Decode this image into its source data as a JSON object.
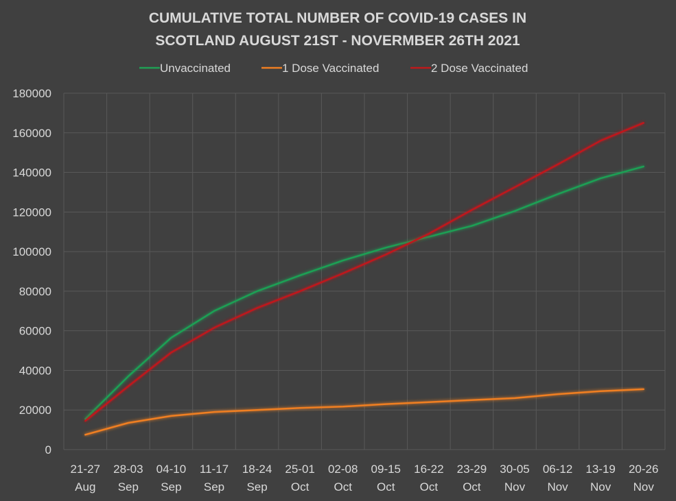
{
  "chart_data": {
    "type": "line",
    "title_lines": [
      "CUMULATIVE TOTAL NUMBER OF COVID-19 CASES IN",
      "SCOTLAND AUGUST 21ST - NOVERMBER 26TH 2021"
    ],
    "categories": [
      [
        "21-27",
        "Aug"
      ],
      [
        "28-03",
        "Sep"
      ],
      [
        "04-10",
        "Sep"
      ],
      [
        "11-17",
        "Sep"
      ],
      [
        "18-24",
        "Sep"
      ],
      [
        "25-01",
        "Oct"
      ],
      [
        "02-08",
        "Oct"
      ],
      [
        "09-15",
        "Oct"
      ],
      [
        "16-22",
        "Oct"
      ],
      [
        "23-29",
        "Oct"
      ],
      [
        "30-05",
        "Nov"
      ],
      [
        "06-12",
        "Nov"
      ],
      [
        "13-19",
        "Nov"
      ],
      [
        "20-26",
        "Nov"
      ]
    ],
    "ylim": [
      0,
      180000
    ],
    "yticks": [
      0,
      20000,
      40000,
      60000,
      80000,
      100000,
      120000,
      140000,
      160000,
      180000
    ],
    "grid": true,
    "legend_position": "top",
    "series": [
      {
        "name": "Unvaccinated",
        "color": "#1fa055",
        "values": [
          15500,
          37000,
          56500,
          70000,
          80000,
          88000,
          95500,
          102000,
          107500,
          113000,
          120500,
          129000,
          137000,
          143000
        ]
      },
      {
        "name": "1 Dose Vaccinated",
        "color": "#f07f22",
        "values": [
          7500,
          13500,
          17000,
          19000,
          20000,
          21000,
          21700,
          23000,
          24000,
          25000,
          26000,
          28000,
          29500,
          30500
        ]
      },
      {
        "name": "2 Dose Vaccinated",
        "color": "#c0191b",
        "values": [
          14500,
          32000,
          49000,
          61500,
          71500,
          80000,
          89000,
          98500,
          109000,
          121000,
          132500,
          144000,
          156000,
          165000
        ]
      }
    ]
  }
}
